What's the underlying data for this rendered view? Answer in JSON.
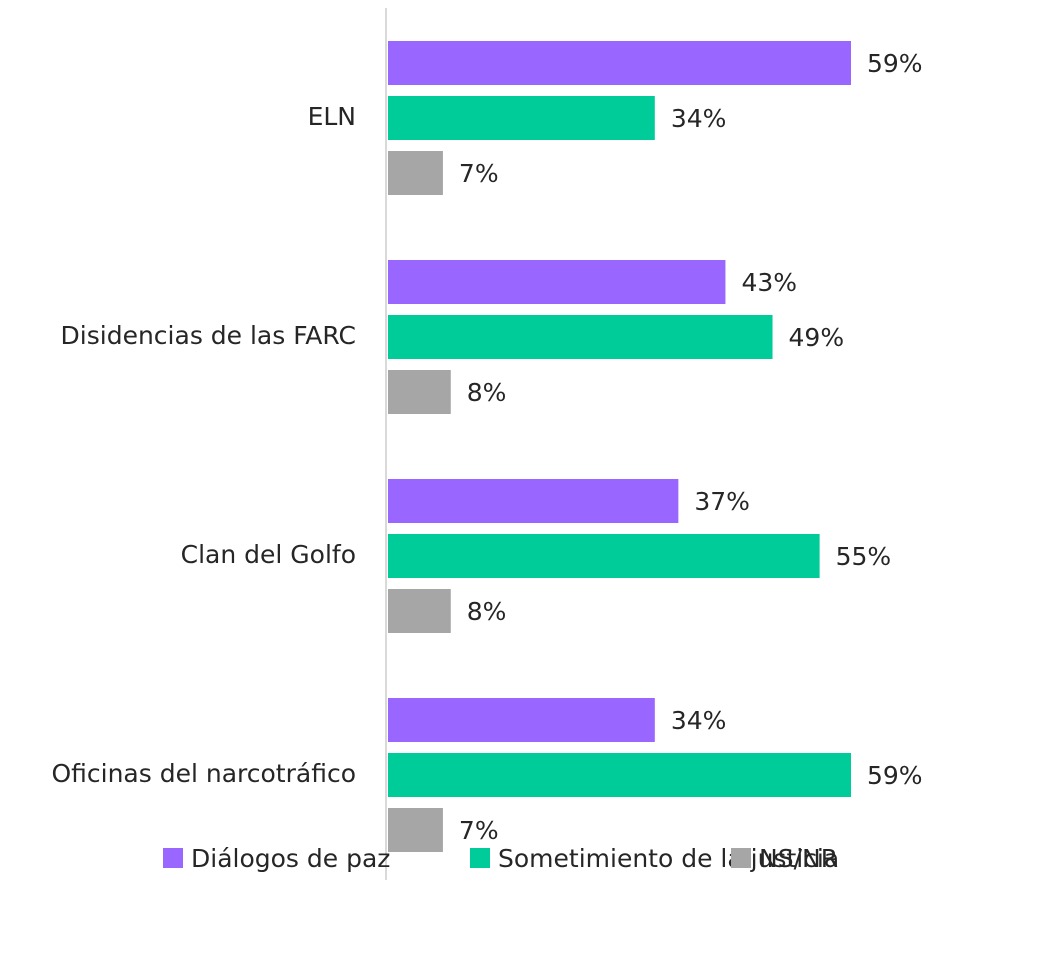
{
  "chart_data": {
    "type": "bar",
    "orientation": "horizontal",
    "categories": [
      "ELN",
      "Disidencias de las FARC",
      "Clan del Golfo",
      "Oficinas del narcotráfico"
    ],
    "series": [
      {
        "name": "Diálogos de paz",
        "color": "#9966ff",
        "values": [
          59,
          43,
          37,
          34
        ],
        "value_labels": [
          "59%",
          "43%",
          "37%",
          "34%"
        ]
      },
      {
        "name": "Sometimiento de la justicia",
        "color": "#00cc99",
        "values": [
          34,
          49,
          55,
          59
        ],
        "value_labels": [
          "34%",
          "49%",
          "55%",
          "59%"
        ]
      },
      {
        "name": "NS/NR",
        "color": "#a6a6a6",
        "values": [
          7,
          8,
          8,
          7
        ],
        "value_labels": [
          "7%",
          "8%",
          "8%",
          "7%"
        ]
      }
    ],
    "legend": "bottom"
  }
}
